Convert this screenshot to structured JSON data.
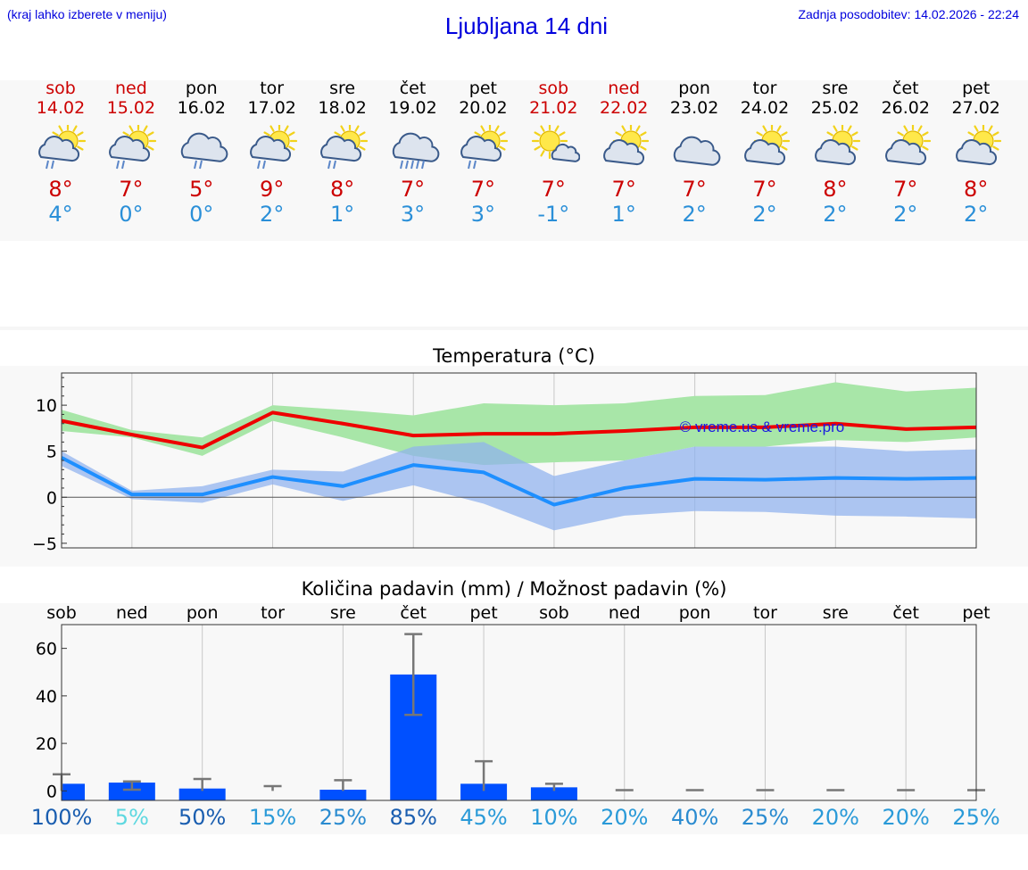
{
  "header": {
    "menu_hint": "(kraj lahko izberete v meniju)",
    "title": "Ljubljana 14 dni",
    "last_update": "Zadnja posodobitev: 14.02.2026 - 22:24"
  },
  "colors": {
    "weekend": "#cc0000",
    "weekday": "#000000",
    "tmax": "#cc0000",
    "tmin": "#2a8fd8",
    "link": "#0000dd"
  },
  "days": [
    {
      "name": "sob",
      "date": "14.02",
      "weekend": true,
      "icon": "sun-cloud-rain-icon",
      "tmax": "8°",
      "tmin": "4°"
    },
    {
      "name": "ned",
      "date": "15.02",
      "weekend": true,
      "icon": "sun-cloud-rain-icon",
      "tmax": "7°",
      "tmin": "0°"
    },
    {
      "name": "pon",
      "date": "16.02",
      "weekend": false,
      "icon": "cloud-rain-icon",
      "tmax": "5°",
      "tmin": "0°"
    },
    {
      "name": "tor",
      "date": "17.02",
      "weekend": false,
      "icon": "sun-cloud-rain-icon",
      "tmax": "9°",
      "tmin": "2°"
    },
    {
      "name": "sre",
      "date": "18.02",
      "weekend": false,
      "icon": "sun-cloud-rain-icon",
      "tmax": "8°",
      "tmin": "1°"
    },
    {
      "name": "čet",
      "date": "19.02",
      "weekend": false,
      "icon": "cloud-heavy-rain-icon",
      "tmax": "7°",
      "tmin": "3°"
    },
    {
      "name": "pet",
      "date": "20.02",
      "weekend": false,
      "icon": "sun-cloud-rain-icon",
      "tmax": "7°",
      "tmin": "3°"
    },
    {
      "name": "sob",
      "date": "21.02",
      "weekend": true,
      "icon": "sun-small-cloud-icon",
      "tmax": "7°",
      "tmin": "-1°"
    },
    {
      "name": "ned",
      "date": "22.02",
      "weekend": true,
      "icon": "sun-cloud-icon",
      "tmax": "7°",
      "tmin": "1°"
    },
    {
      "name": "pon",
      "date": "23.02",
      "weekend": false,
      "icon": "cloud-icon",
      "tmax": "7°",
      "tmin": "2°"
    },
    {
      "name": "tor",
      "date": "24.02",
      "weekend": false,
      "icon": "sun-cloud-icon",
      "tmax": "7°",
      "tmin": "2°"
    },
    {
      "name": "sre",
      "date": "25.02",
      "weekend": false,
      "icon": "sun-cloud-icon",
      "tmax": "8°",
      "tmin": "2°"
    },
    {
      "name": "čet",
      "date": "26.02",
      "weekend": false,
      "icon": "sun-cloud-icon",
      "tmax": "7°",
      "tmin": "2°"
    },
    {
      "name": "pet",
      "date": "27.02",
      "weekend": false,
      "icon": "sun-cloud-icon",
      "tmax": "8°",
      "tmin": "2°"
    }
  ],
  "chart_data": [
    {
      "type": "line",
      "title": "Temperatura (°C)",
      "xlabel": "",
      "ylabel": "",
      "ylim": [
        -5.5,
        13.5
      ],
      "yticks": [
        -5,
        0,
        5,
        10
      ],
      "grid": true,
      "watermark": "© vreme.us & vreme.pro",
      "x": [
        0,
        1,
        2,
        3,
        4,
        5,
        6,
        7,
        8,
        9,
        10,
        11,
        12,
        13
      ],
      "series": [
        {
          "role": "max",
          "color": "#ee0000",
          "values": [
            8.3,
            6.8,
            5.4,
            9.2,
            8.0,
            6.7,
            6.9,
            6.9,
            7.2,
            7.6,
            7.6,
            8.0,
            7.4,
            7.6
          ]
        },
        {
          "role": "min",
          "color": "#1e8fff",
          "values": [
            4.3,
            0.3,
            0.3,
            2.2,
            1.2,
            3.5,
            2.7,
            -0.8,
            1.0,
            2.0,
            1.9,
            2.1,
            2.0,
            2.1
          ]
        }
      ],
      "bands": [
        {
          "role": "max-range",
          "color": "#a8e6a8",
          "low": [
            7.2,
            6.5,
            4.5,
            8.3,
            6.5,
            4.5,
            3.5,
            3.8,
            4.0,
            5.5,
            5.5,
            6.2,
            6.0,
            6.5
          ],
          "high": [
            9.5,
            7.3,
            6.5,
            10.0,
            9.5,
            8.9,
            10.2,
            10.0,
            10.2,
            11.0,
            11.1,
            12.5,
            11.5,
            11.9
          ]
        },
        {
          "role": "min-range",
          "color": "#8fb2ee",
          "low": [
            3.4,
            -0.2,
            -0.6,
            1.4,
            -0.4,
            1.3,
            -0.7,
            -3.6,
            -2.0,
            -1.5,
            -1.6,
            -2.0,
            -2.1,
            -2.3
          ],
          "high": [
            5.0,
            0.7,
            1.2,
            3.0,
            2.8,
            5.5,
            6.0,
            2.3,
            4.0,
            5.5,
            5.5,
            5.5,
            5.0,
            5.2
          ]
        }
      ]
    },
    {
      "type": "bar",
      "title": "Količina padavin (mm) / Možnost padavin (%)",
      "xlabel": "",
      "ylabel": "",
      "ylim": [
        -4,
        70
      ],
      "yticks": [
        0,
        20,
        40,
        60
      ],
      "grid": true,
      "categories": [
        "sob",
        "ned",
        "pon",
        "tor",
        "sre",
        "čet",
        "pet",
        "sob",
        "ned",
        "pon",
        "tor",
        "sre",
        "čet",
        "pet"
      ],
      "values": [
        3,
        3.5,
        1,
        0,
        0.5,
        49,
        3,
        1.5,
        0,
        0,
        0,
        0,
        0,
        0
      ],
      "error_high": [
        7,
        4,
        5,
        2,
        4.5,
        66,
        12.5,
        3,
        0.3,
        0.3,
        0.3,
        0.3,
        0.3,
        0.3
      ],
      "error_low": [
        0,
        0.5,
        0,
        0,
        0,
        32,
        0,
        0,
        0,
        0,
        0,
        0,
        0,
        0
      ],
      "bar_color": "#0050ff",
      "probabilities": [
        "100%",
        "5%",
        "50%",
        "15%",
        "25%",
        "85%",
        "45%",
        "10%",
        "20%",
        "40%",
        "25%",
        "20%",
        "20%",
        "25%"
      ],
      "probability_colors": [
        "#1a5eb0",
        "#5ed8e0",
        "#1a5eb0",
        "#2a9ad8",
        "#2a8bd0",
        "#1a5eb0",
        "#2a9ad8",
        "#2a9ad8",
        "#2a9ad8",
        "#2a8bd0",
        "#2a8bd0",
        "#2a9ad8",
        "#2a9ad8",
        "#2a9ad8"
      ]
    }
  ]
}
